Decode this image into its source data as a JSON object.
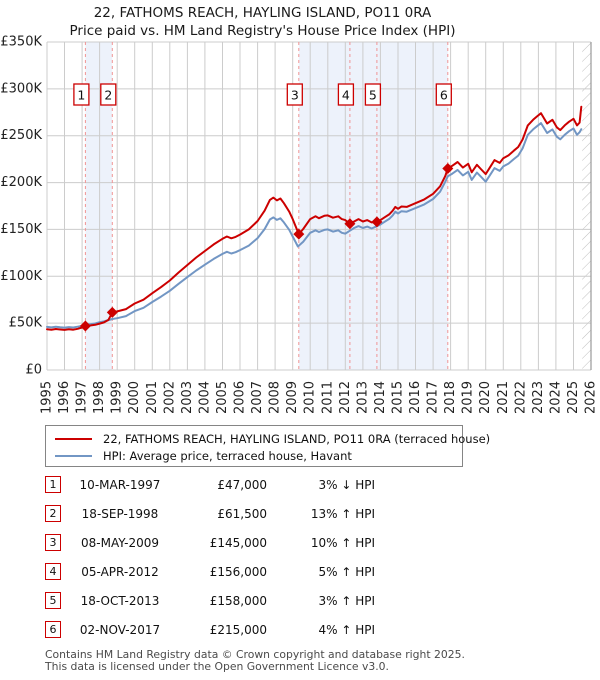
{
  "header": {
    "title": "22, FATHOMS REACH, HAYLING ISLAND, PO11 0RA",
    "subtitle": "Price paid vs. HM Land Registry's House Price Index (HPI)"
  },
  "legend": {
    "items": [
      {
        "label": "22, FATHOMS REACH, HAYLING ISLAND, PO11 0RA (terraced house)",
        "color": "#cc0000"
      },
      {
        "label": "HPI: Average price, terraced house, Havant",
        "color": "#7296c4"
      }
    ]
  },
  "transactions": [
    {
      "num": "1",
      "date": "10-MAR-1997",
      "price": "£47,000",
      "hpi_delta": "3% ↓ HPI"
    },
    {
      "num": "2",
      "date": "18-SEP-1998",
      "price": "£61,500",
      "hpi_delta": "13% ↑ HPI"
    },
    {
      "num": "3",
      "date": "08-MAY-2009",
      "price": "£145,000",
      "hpi_delta": "10% ↑ HPI"
    },
    {
      "num": "4",
      "date": "05-APR-2012",
      "price": "£156,000",
      "hpi_delta": "5% ↑ HPI"
    },
    {
      "num": "5",
      "date": "18-OCT-2013",
      "price": "£158,000",
      "hpi_delta": "3% ↑ HPI"
    },
    {
      "num": "6",
      "date": "02-NOV-2017",
      "price": "£215,000",
      "hpi_delta": "4% ↑ HPI"
    }
  ],
  "footer": {
    "line1": "Contains HM Land Registry data © Crown copyright and database right 2025.",
    "line2": "This data is licensed under the Open Government Licence v3.0."
  },
  "chart_data": {
    "type": "line",
    "title": "22, FATHOMS REACH, HAYLING ISLAND, PO11 0RA — Price paid vs. HPI",
    "unit": "GBP thousands",
    "x_axis": {
      "min": 1995,
      "max": 2026,
      "tick_years": [
        1995,
        1996,
        1997,
        1998,
        1999,
        2000,
        2001,
        2002,
        2003,
        2004,
        2005,
        2006,
        2007,
        2008,
        2009,
        2010,
        2011,
        2012,
        2013,
        2014,
        2015,
        2016,
        2017,
        2018,
        2019,
        2020,
        2021,
        2022,
        2023,
        2024,
        2025,
        2026
      ]
    },
    "y_axis": {
      "min": 0,
      "max": 350,
      "tick_step": 50,
      "tick_labels": [
        "£0",
        "£50K",
        "£100K",
        "£150K",
        "£200K",
        "£250K",
        "£300K",
        "£350K"
      ]
    },
    "ownership_bands": [
      [
        1997.19,
        1998.72
      ],
      [
        2009.35,
        2017.84
      ]
    ],
    "future_hatch_band": [
      2025.5,
      2026
    ],
    "sales": [
      {
        "num": "1",
        "x": 1997.19,
        "price_k": 47
      },
      {
        "num": "2",
        "x": 1998.72,
        "price_k": 61.5
      },
      {
        "num": "3",
        "x": 2009.35,
        "price_k": 145
      },
      {
        "num": "4",
        "x": 2012.26,
        "price_k": 156
      },
      {
        "num": "5",
        "x": 2013.8,
        "price_k": 158
      },
      {
        "num": "6",
        "x": 2017.84,
        "price_k": 215
      }
    ],
    "series": [
      {
        "name": "HPI: Average price, terraced house, Havant",
        "color": "#7296c4",
        "points": [
          [
            1995.0,
            46.0
          ],
          [
            1995.25,
            45.5
          ],
          [
            1995.5,
            46.2
          ],
          [
            1995.75,
            45.6
          ],
          [
            1996.0,
            45.2
          ],
          [
            1996.25,
            45.8
          ],
          [
            1996.5,
            45.4
          ],
          [
            1996.75,
            46.2
          ],
          [
            1997.0,
            47.2
          ],
          [
            1997.19,
            48.4
          ],
          [
            1997.5,
            49.0
          ],
          [
            1997.75,
            49.6
          ],
          [
            1998.0,
            51.0
          ],
          [
            1998.25,
            52.0
          ],
          [
            1998.5,
            53.3
          ],
          [
            1998.72,
            54.4
          ],
          [
            1999.0,
            55.3
          ],
          [
            1999.5,
            57.5
          ],
          [
            2000.0,
            62.8
          ],
          [
            2000.5,
            66.4
          ],
          [
            2001.0,
            72.6
          ],
          [
            2001.5,
            78.3
          ],
          [
            2002.0,
            84.5
          ],
          [
            2002.5,
            92.0
          ],
          [
            2003.0,
            99.1
          ],
          [
            2003.5,
            106.2
          ],
          [
            2004.0,
            112.4
          ],
          [
            2004.5,
            118.6
          ],
          [
            2005.0,
            123.9
          ],
          [
            2005.25,
            126.1
          ],
          [
            2005.5,
            124.3
          ],
          [
            2005.75,
            125.7
          ],
          [
            2006.0,
            127.9
          ],
          [
            2006.5,
            132.7
          ],
          [
            2007.0,
            140.7
          ],
          [
            2007.4,
            150.4
          ],
          [
            2007.7,
            160.6
          ],
          [
            2007.9,
            162.8
          ],
          [
            2008.1,
            160.2
          ],
          [
            2008.3,
            161.9
          ],
          [
            2008.5,
            157.5
          ],
          [
            2008.8,
            149.6
          ],
          [
            2009.0,
            142.5
          ],
          [
            2009.3,
            131.8
          ],
          [
            2009.6,
            136.8
          ],
          [
            2010.0,
            146.4
          ],
          [
            2010.3,
            149.1
          ],
          [
            2010.5,
            147.3
          ],
          [
            2010.8,
            149.5
          ],
          [
            2011.0,
            150.0
          ],
          [
            2011.3,
            147.7
          ],
          [
            2011.6,
            149.1
          ],
          [
            2011.8,
            146.4
          ],
          [
            2012.0,
            145.5
          ],
          [
            2012.26,
            148.6
          ],
          [
            2012.5,
            151.5
          ],
          [
            2012.75,
            153.5
          ],
          [
            2013.0,
            151.5
          ],
          [
            2013.25,
            153.0
          ],
          [
            2013.5,
            151.0
          ],
          [
            2013.8,
            153.4
          ],
          [
            2014.0,
            155.3
          ],
          [
            2014.25,
            158.3
          ],
          [
            2014.5,
            161.2
          ],
          [
            2014.7,
            165.0
          ],
          [
            2014.85,
            168.9
          ],
          [
            2015.0,
            167.0
          ],
          [
            2015.2,
            169.4
          ],
          [
            2015.5,
            168.9
          ],
          [
            2016.0,
            172.8
          ],
          [
            2016.5,
            176.7
          ],
          [
            2017.0,
            182.5
          ],
          [
            2017.4,
            190.3
          ],
          [
            2017.7,
            200.9
          ],
          [
            2017.84,
            206.7
          ],
          [
            2018.1,
            209.6
          ],
          [
            2018.4,
            213.5
          ],
          [
            2018.7,
            207.7
          ],
          [
            2019.0,
            211.5
          ],
          [
            2019.2,
            202.9
          ],
          [
            2019.5,
            210.6
          ],
          [
            2019.75,
            205.8
          ],
          [
            2020.0,
            200.9
          ],
          [
            2020.3,
            209.6
          ],
          [
            2020.5,
            215.4
          ],
          [
            2020.8,
            212.5
          ],
          [
            2021.0,
            217.3
          ],
          [
            2021.3,
            220.2
          ],
          [
            2021.6,
            225.0
          ],
          [
            2021.85,
            228.8
          ],
          [
            2022.1,
            236.5
          ],
          [
            2022.4,
            251.0
          ],
          [
            2022.7,
            256.7
          ],
          [
            2022.95,
            260.6
          ],
          [
            2023.15,
            263.5
          ],
          [
            2023.5,
            252.9
          ],
          [
            2023.8,
            256.7
          ],
          [
            2024.05,
            249.0
          ],
          [
            2024.25,
            246.2
          ],
          [
            2024.5,
            251.0
          ],
          [
            2024.75,
            254.8
          ],
          [
            2025.0,
            257.7
          ],
          [
            2025.2,
            251.0
          ],
          [
            2025.35,
            253.8
          ],
          [
            2025.45,
            257.0
          ]
        ]
      },
      {
        "name": "22, FATHOMS REACH, HAYLING ISLAND, PO11 0RA (terraced house)",
        "color": "#cc0000",
        "points": [
          [
            1995.0,
            43.5
          ],
          [
            1995.25,
            43.0
          ],
          [
            1995.5,
            43.8
          ],
          [
            1995.75,
            43.2
          ],
          [
            1996.0,
            42.8
          ],
          [
            1996.25,
            43.4
          ],
          [
            1996.5,
            43.0
          ],
          [
            1996.75,
            44.0
          ],
          [
            1997.0,
            45.3
          ],
          [
            1997.19,
            47.0
          ],
          [
            1997.5,
            47.6
          ],
          [
            1997.75,
            48.2
          ],
          [
            1998.0,
            49.5
          ],
          [
            1998.25,
            50.8
          ],
          [
            1998.5,
            53.5
          ],
          [
            1998.72,
            61.5
          ],
          [
            1999.0,
            62.5
          ],
          [
            1999.5,
            65.0
          ],
          [
            2000.0,
            71.0
          ],
          [
            2000.5,
            75.0
          ],
          [
            2001.0,
            82.0
          ],
          [
            2001.5,
            88.5
          ],
          [
            2002.0,
            95.5
          ],
          [
            2002.5,
            104.0
          ],
          [
            2003.0,
            112.0
          ],
          [
            2003.5,
            120.0
          ],
          [
            2004.0,
            127.0
          ],
          [
            2004.5,
            134.0
          ],
          [
            2005.0,
            140.0
          ],
          [
            2005.25,
            142.5
          ],
          [
            2005.5,
            140.5
          ],
          [
            2005.75,
            142.0
          ],
          [
            2006.0,
            144.5
          ],
          [
            2006.5,
            150.0
          ],
          [
            2007.0,
            159.0
          ],
          [
            2007.4,
            170.0
          ],
          [
            2007.7,
            181.5
          ],
          [
            2007.9,
            184.0
          ],
          [
            2008.1,
            181.0
          ],
          [
            2008.3,
            183.0
          ],
          [
            2008.5,
            178.0
          ],
          [
            2008.8,
            169.0
          ],
          [
            2009.0,
            161.0
          ],
          [
            2009.35,
            145.0
          ],
          [
            2009.6,
            150.5
          ],
          [
            2010.0,
            161.0
          ],
          [
            2010.3,
            164.0
          ],
          [
            2010.5,
            162.0
          ],
          [
            2010.8,
            164.5
          ],
          [
            2011.0,
            165.0
          ],
          [
            2011.3,
            162.5
          ],
          [
            2011.6,
            164.0
          ],
          [
            2011.8,
            161.0
          ],
          [
            2012.0,
            160.0
          ],
          [
            2012.26,
            156.0
          ],
          [
            2012.5,
            158.5
          ],
          [
            2012.75,
            161.0
          ],
          [
            2013.0,
            158.5
          ],
          [
            2013.25,
            160.0
          ],
          [
            2013.5,
            157.5
          ],
          [
            2013.8,
            158.0
          ],
          [
            2014.0,
            160.0
          ],
          [
            2014.25,
            163.0
          ],
          [
            2014.5,
            166.0
          ],
          [
            2014.7,
            170.0
          ],
          [
            2014.85,
            174.0
          ],
          [
            2015.0,
            172.0
          ],
          [
            2015.2,
            174.5
          ],
          [
            2015.5,
            174.0
          ],
          [
            2016.0,
            178.0
          ],
          [
            2016.5,
            182.0
          ],
          [
            2017.0,
            188.0
          ],
          [
            2017.4,
            196.0
          ],
          [
            2017.7,
            207.0
          ],
          [
            2017.84,
            215.0
          ],
          [
            2018.1,
            218.0
          ],
          [
            2018.4,
            222.0
          ],
          [
            2018.7,
            216.0
          ],
          [
            2019.0,
            220.0
          ],
          [
            2019.2,
            211.0
          ],
          [
            2019.5,
            219.0
          ],
          [
            2019.75,
            214.0
          ],
          [
            2020.0,
            209.0
          ],
          [
            2020.3,
            218.0
          ],
          [
            2020.5,
            224.0
          ],
          [
            2020.8,
            221.0
          ],
          [
            2021.0,
            226.0
          ],
          [
            2021.3,
            229.0
          ],
          [
            2021.6,
            234.0
          ],
          [
            2021.85,
            238.0
          ],
          [
            2022.1,
            246.0
          ],
          [
            2022.4,
            261.0
          ],
          [
            2022.7,
            267.0
          ],
          [
            2022.95,
            271.0
          ],
          [
            2023.15,
            274.0
          ],
          [
            2023.5,
            263.0
          ],
          [
            2023.8,
            267.0
          ],
          [
            2024.05,
            259.0
          ],
          [
            2024.25,
            256.0
          ],
          [
            2024.5,
            261.0
          ],
          [
            2024.75,
            265.0
          ],
          [
            2025.0,
            268.0
          ],
          [
            2025.2,
            261.0
          ],
          [
            2025.35,
            264.0
          ],
          [
            2025.45,
            281.0
          ]
        ]
      }
    ],
    "colors": {
      "grid": "#cccccc",
      "band": "#edf2fb",
      "sale_line": "#f09494",
      "hatch": "#bfbfbf",
      "right_border": "#999999",
      "marker": "#cc0000"
    },
    "legend_position": "bottom",
    "grid": true
  }
}
